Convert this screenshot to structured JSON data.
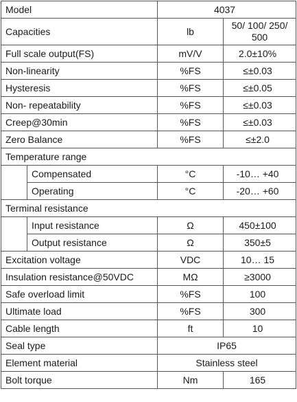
{
  "rows": [
    {
      "param": "Model",
      "value": "4037"
    },
    {
      "param": "Capacities",
      "unit": "lb",
      "value": "50/ 100/ 250/ 500"
    },
    {
      "param": "Full scale output(FS)",
      "unit": "mV/V",
      "value": "2.0±10%"
    },
    {
      "param": "Non-linearity",
      "unit": "%FS",
      "value": "≤±0.03"
    },
    {
      "param": "Hysteresis",
      "unit": "%FS",
      "value": "≤±0.05"
    },
    {
      "param": "Non- repeatability",
      "unit": "%FS",
      "value": "≤±0.03"
    },
    {
      "param": "Creep@30min",
      "unit": "%FS",
      "value": "≤±0.03"
    },
    {
      "param": "Zero Balance",
      "unit": "%FS",
      "value": "≤±2.0"
    },
    {
      "param": "Temperature range"
    },
    {
      "param": "Compensated",
      "unit": "°C",
      "value": "-10… +40"
    },
    {
      "param": "Operating",
      "unit": "°C",
      "value": "-20… +60"
    },
    {
      "param": "Terminal resistance"
    },
    {
      "param": "Input resistance",
      "unit": "Ω",
      "value": "450±100"
    },
    {
      "param": "Output resistance",
      "unit": "Ω",
      "value": "350±5"
    },
    {
      "param": "Excitation voltage",
      "unit": "VDC",
      "value": "10… 15"
    },
    {
      "param": "Insulation resistance@50VDC",
      "unit": "MΩ",
      "value": "≥3000"
    },
    {
      "param": "Safe overload limit",
      "unit": "%FS",
      "value": "100"
    },
    {
      "param": "Ultimate load",
      "unit": "%FS",
      "value": "300"
    },
    {
      "param": "Cable length",
      "unit": "ft",
      "value": "10"
    },
    {
      "param": "Seal type",
      "value": "IP65"
    },
    {
      "param": "Element material",
      "value": "Stainless steel"
    },
    {
      "param": "Bolt torque",
      "unit": "Nm",
      "value": "165"
    }
  ]
}
